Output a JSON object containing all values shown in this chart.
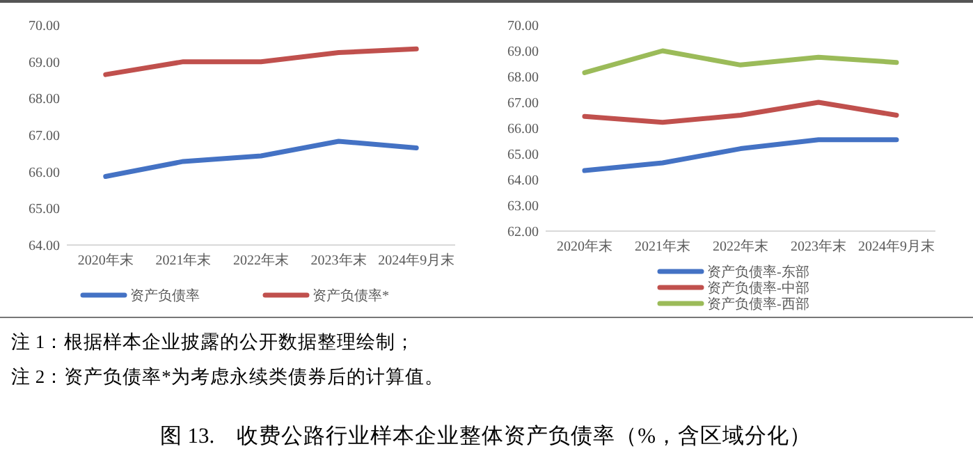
{
  "chart_data": [
    {
      "type": "line",
      "categories": [
        "2020年末",
        "2021年末",
        "2022年末",
        "2023年末",
        "2024年9月末"
      ],
      "series": [
        {
          "name": "资产负债率",
          "color": "#4472c4",
          "values": [
            65.87,
            66.28,
            66.43,
            66.83,
            66.65
          ]
        },
        {
          "name": "资产负债率*",
          "color": "#c0504d",
          "values": [
            68.65,
            69.0,
            69.0,
            69.25,
            69.35
          ]
        }
      ],
      "ylim": [
        64,
        70
      ],
      "yticks": [
        {
          "value": 64,
          "label": "64.00"
        },
        {
          "value": 65,
          "label": "65.00"
        },
        {
          "value": 66,
          "label": "66.00"
        },
        {
          "value": 67,
          "label": "67.00"
        },
        {
          "value": 68,
          "label": "68.00"
        },
        {
          "value": 69,
          "label": "69.00"
        },
        {
          "value": 70,
          "label": "70.00"
        }
      ],
      "grid": false,
      "legend": "bottom",
      "marker": "none",
      "annotations": [
        "注 1：根据样本企业披露的公开数据整理绘制；",
        "注 2：资产负债率*为考虑永续类债券后的计算值。",
        "图 13.　收费公路行业样本企业整体资产负债率（%，含区域分化）"
      ]
    },
    {
      "type": "line",
      "categories": [
        "2020年末",
        "2021年末",
        "2022年末",
        "2023年末",
        "2024年9月末"
      ],
      "series": [
        {
          "name": "资产负债率-东部",
          "color": "#4472c4",
          "values": [
            64.35,
            64.65,
            65.2,
            65.55,
            65.55
          ]
        },
        {
          "name": "资产负债率-中部",
          "color": "#c0504d",
          "values": [
            66.45,
            66.22,
            66.5,
            67.0,
            66.5
          ]
        },
        {
          "name": "资产负债率-西部",
          "color": "#9bbb59",
          "values": [
            68.15,
            69.0,
            68.45,
            68.75,
            68.55
          ]
        }
      ],
      "ylim": [
        62,
        70
      ],
      "yticks": [
        {
          "value": 62,
          "label": "62.00"
        },
        {
          "value": 63,
          "label": "63.00"
        },
        {
          "value": 64,
          "label": "64.00"
        },
        {
          "value": 65,
          "label": "65.00"
        },
        {
          "value": 66,
          "label": "66.00"
        },
        {
          "value": 67,
          "label": "67.00"
        },
        {
          "value": 68,
          "label": "68.00"
        },
        {
          "value": 69,
          "label": "69.00"
        },
        {
          "value": 70,
          "label": "70.00"
        }
      ],
      "grid": false,
      "legend": "bottom",
      "marker": "none"
    }
  ]
}
